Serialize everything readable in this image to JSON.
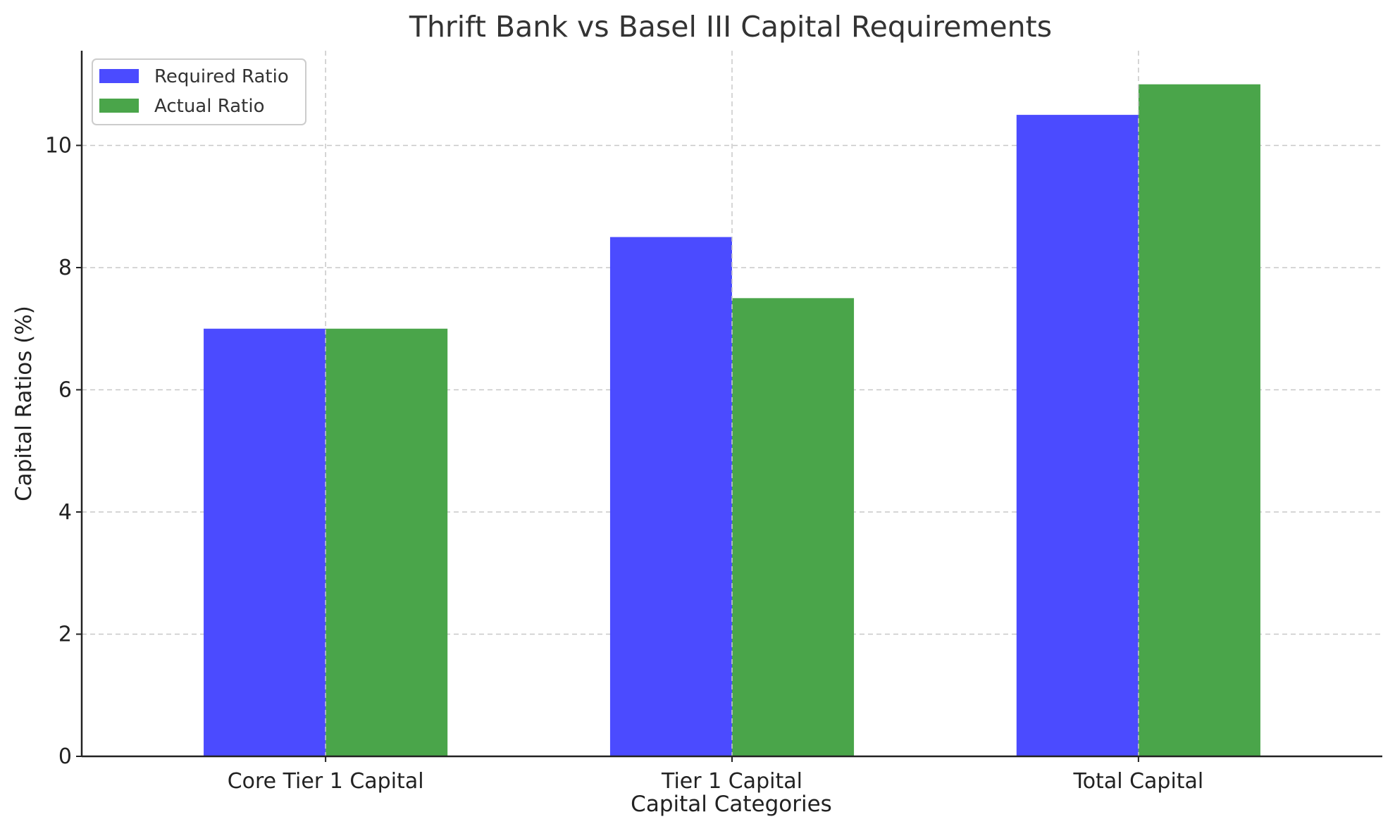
{
  "chart_data": {
    "type": "bar",
    "title": "Thrift Bank vs Basel III Capital Requirements",
    "xlabel": "Capital Categories",
    "ylabel": "Capital Ratios (%)",
    "categories": [
      "Core Tier 1 Capital",
      "Tier 1 Capital",
      "Total Capital"
    ],
    "series": [
      {
        "name": "Required Ratio",
        "values": [
          7.0,
          8.5,
          10.5
        ],
        "color": "#4b4bff"
      },
      {
        "name": "Actual Ratio",
        "values": [
          7.0,
          7.5,
          11.0
        ],
        "color": "#4aa54a"
      }
    ],
    "ylim": [
      0,
      11.55
    ],
    "yticks": [
      0,
      2,
      4,
      6,
      8,
      10
    ],
    "grid": true,
    "legend_position": "top-left"
  }
}
